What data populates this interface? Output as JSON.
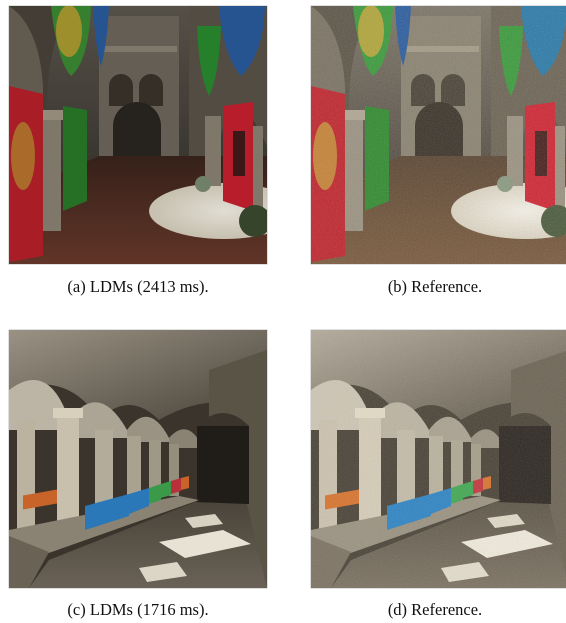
{
  "figure": {
    "panels": [
      {
        "id": "a",
        "caption": "(a) LDMs (2413 ms).",
        "scene": "atrium-banners",
        "variant": "ldm"
      },
      {
        "id": "b",
        "caption": "(b) Reference.",
        "scene": "atrium-banners",
        "variant": "reference"
      },
      {
        "id": "c",
        "caption": "(c) LDMs (1716 ms).",
        "scene": "arcade-corridor",
        "variant": "ldm"
      },
      {
        "id": "d",
        "caption": "(d) Reference.",
        "scene": "arcade-corridor",
        "variant": "reference"
      }
    ]
  },
  "colors": {
    "banner_red": "#c0242c",
    "banner_green": "#2f8a2e",
    "banner_blue": "#2a5c9e",
    "banner_gold": "#c8a23a",
    "cushion_blue": "#2a78b8",
    "cushion_orange": "#c8642a",
    "cushion_green": "#3a9a4a",
    "cushion_red": "#b8303a",
    "stone_light": "#d8d0c2",
    "stone_dark": "#3a332b",
    "floor_lit": "#e8e2d4"
  }
}
